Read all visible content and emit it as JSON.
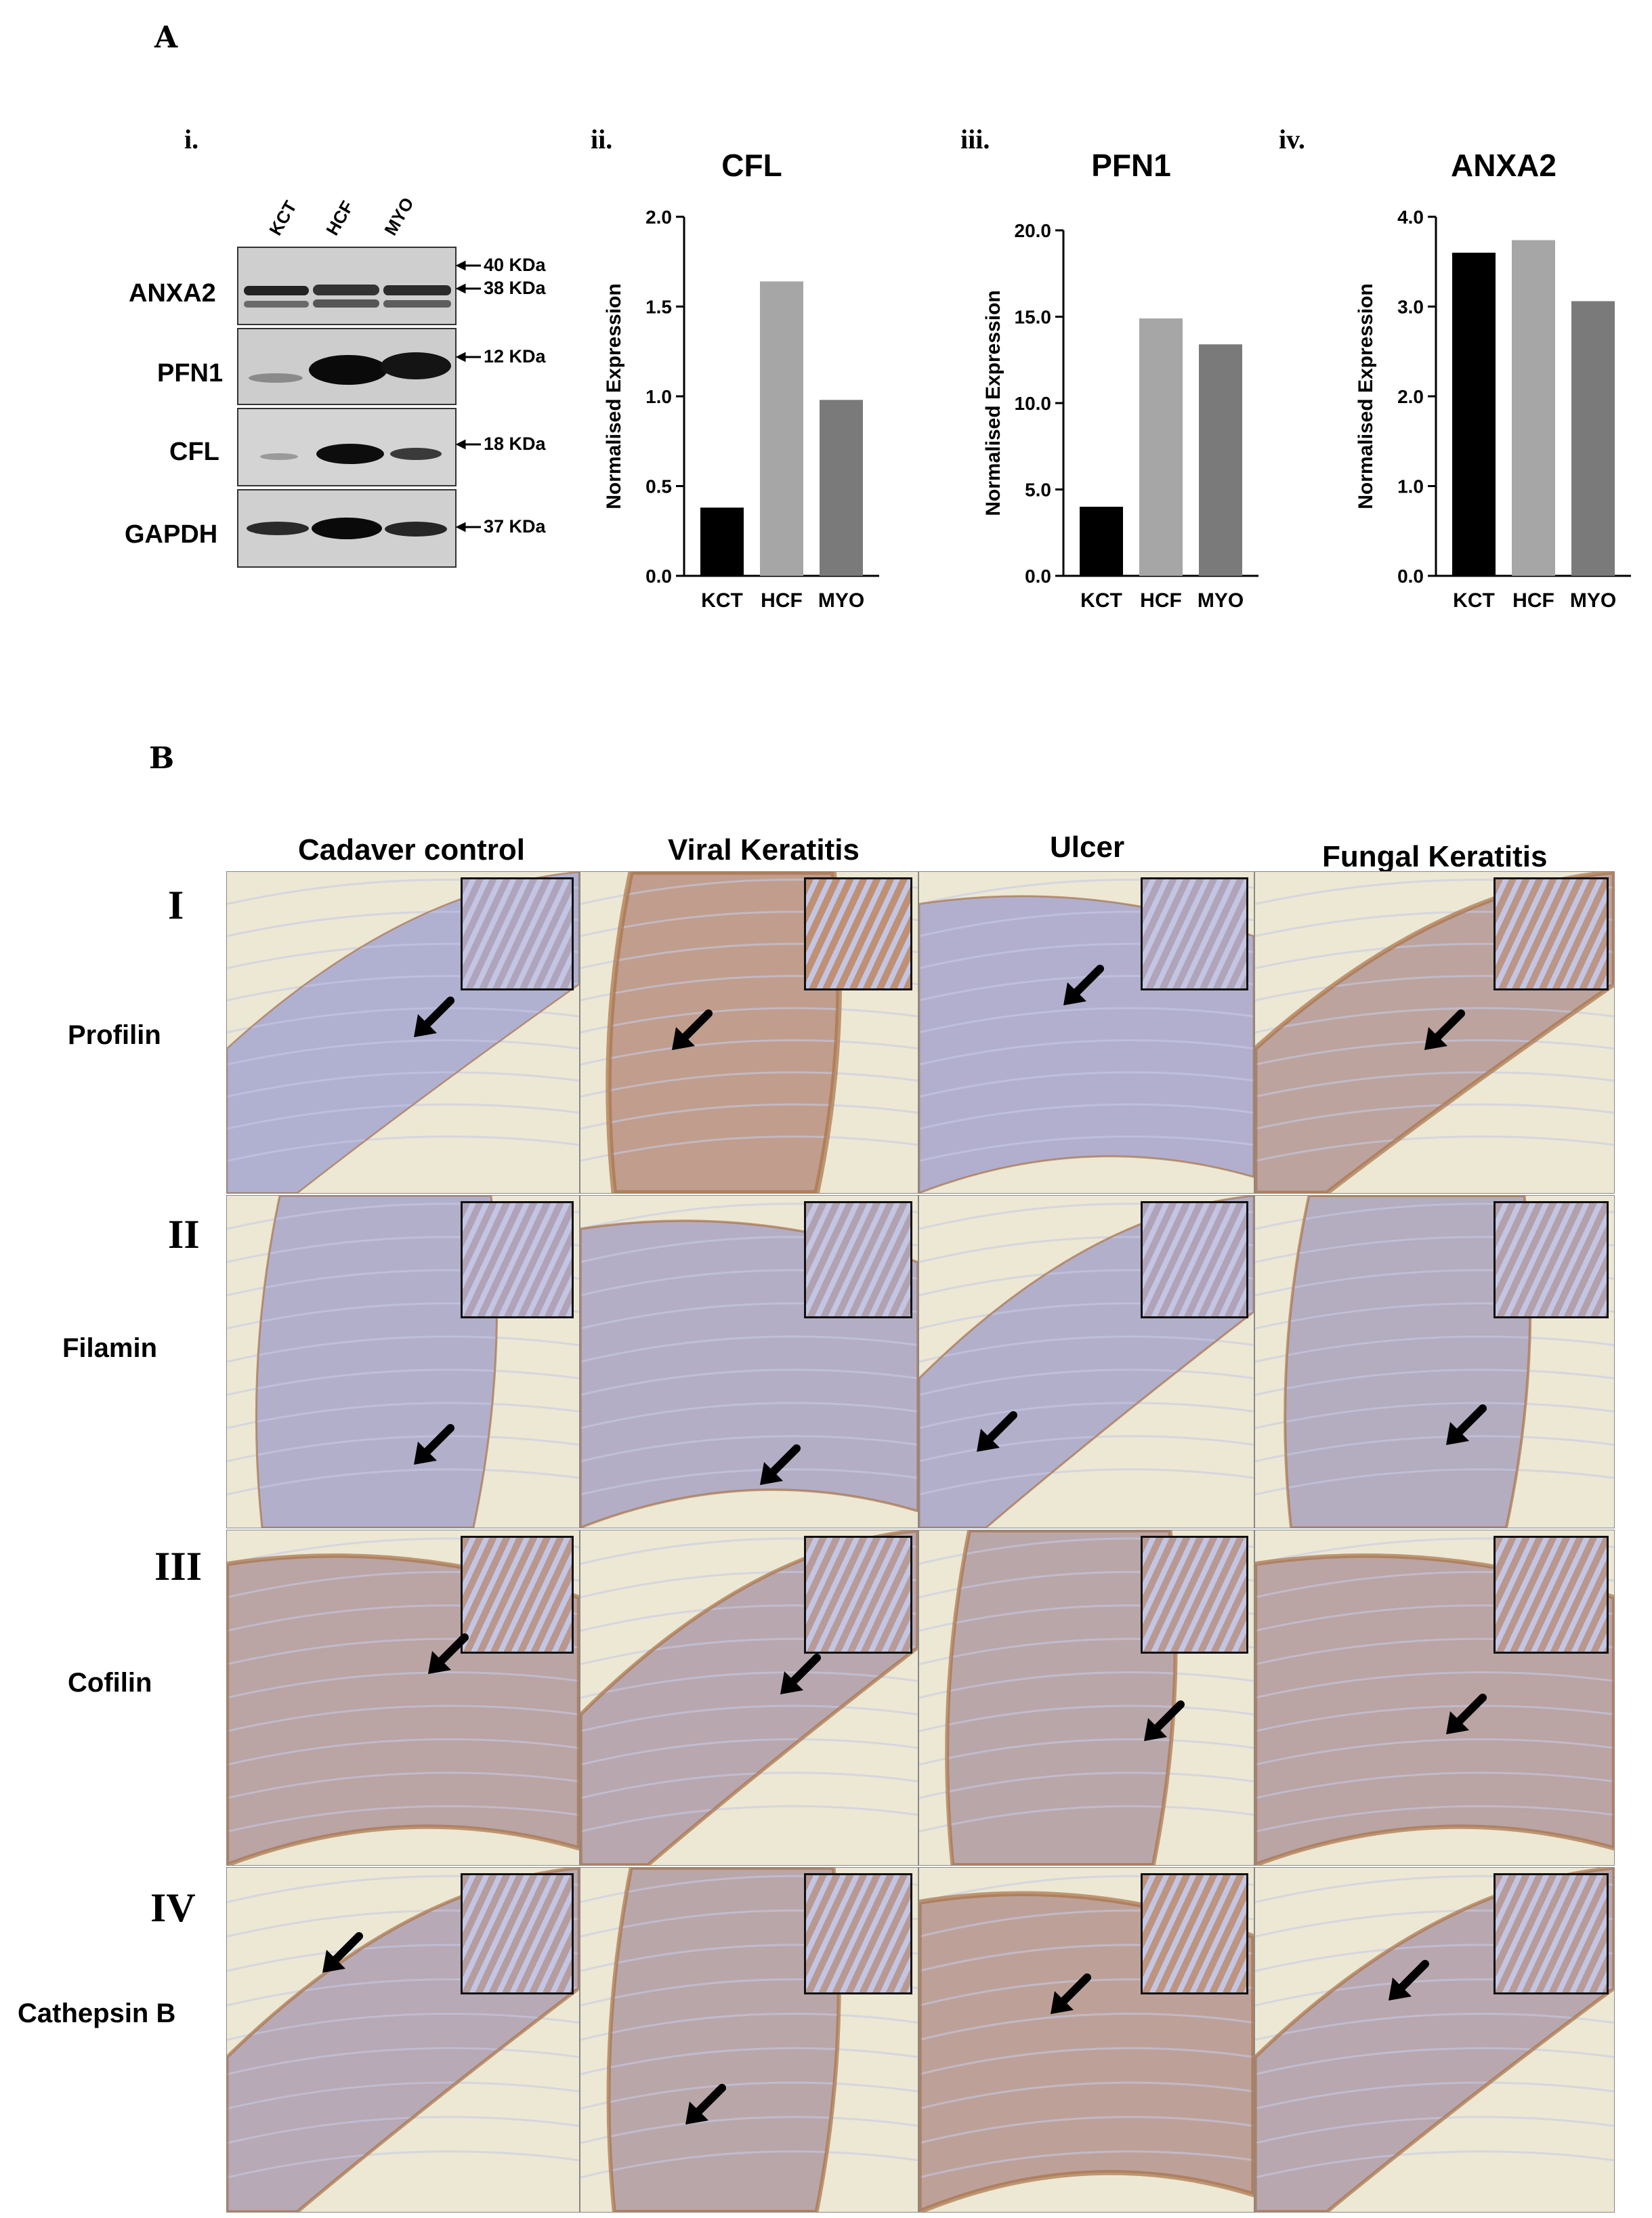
{
  "panel_a": {
    "letter": "A",
    "sub_labels": [
      "i.",
      "ii.",
      "iii.",
      "iv."
    ],
    "blot": {
      "lanes": [
        "KCT",
        "HCF",
        "MYO"
      ],
      "proteins": [
        "ANXA2",
        "PFN1",
        "CFL",
        "GAPDH"
      ],
      "weights": [
        "40 KDa",
        "38 KDa",
        "12 KDa",
        "18 KDa",
        "37 KDa"
      ]
    }
  },
  "chart_data": [
    {
      "type": "bar",
      "title": "CFL",
      "ylabel": "Normalised Expression",
      "categories": [
        "KCT",
        "HCF",
        "MYO"
      ],
      "values": [
        0.38,
        1.64,
        0.98
      ],
      "ylim": [
        0,
        2.0
      ],
      "yticks": [
        "0.0",
        "0.5",
        "1.0",
        "1.5",
        "2.0"
      ],
      "colors": [
        "#000000",
        "#a6a6a6",
        "#7a7a7a"
      ]
    },
    {
      "type": "bar",
      "title": "PFN1",
      "ylabel": "Normalised Expression",
      "categories": [
        "KCT",
        "HCF",
        "MYO"
      ],
      "values": [
        4.0,
        14.9,
        13.4
      ],
      "ylim": [
        0,
        20.0
      ],
      "yticks": [
        "0.0",
        "5.0",
        "10.0",
        "15.0",
        "20.0"
      ],
      "colors": [
        "#000000",
        "#a6a6a6",
        "#7a7a7a"
      ]
    },
    {
      "type": "bar",
      "title": "ANXA2",
      "ylabel": "Normalised Expression",
      "categories": [
        "KCT",
        "HCF",
        "MYO"
      ],
      "values": [
        3.6,
        3.74,
        3.06
      ],
      "ylim": [
        0,
        4.0
      ],
      "yticks": [
        "0.0",
        "1.0",
        "2.0",
        "3.0",
        "4.0"
      ],
      "colors": [
        "#000000",
        "#a6a6a6",
        "#7a7a7a"
      ]
    }
  ],
  "panel_b": {
    "letter": "B",
    "columns": [
      "Cadaver control",
      "Viral Keratitis",
      "Ulcer",
      "Fungal Keratitis"
    ],
    "rows": [
      {
        "num": "I",
        "label": "Profilin"
      },
      {
        "num": "II",
        "label": "Filamin"
      },
      {
        "num": "III",
        "label": "Cofilin"
      },
      {
        "num": "IV",
        "label": "Cathepsin  B"
      }
    ],
    "colors": {
      "stain_blue": "#a9acd6",
      "stain_brown": "#c4895a",
      "background": "#ece8d4"
    }
  }
}
